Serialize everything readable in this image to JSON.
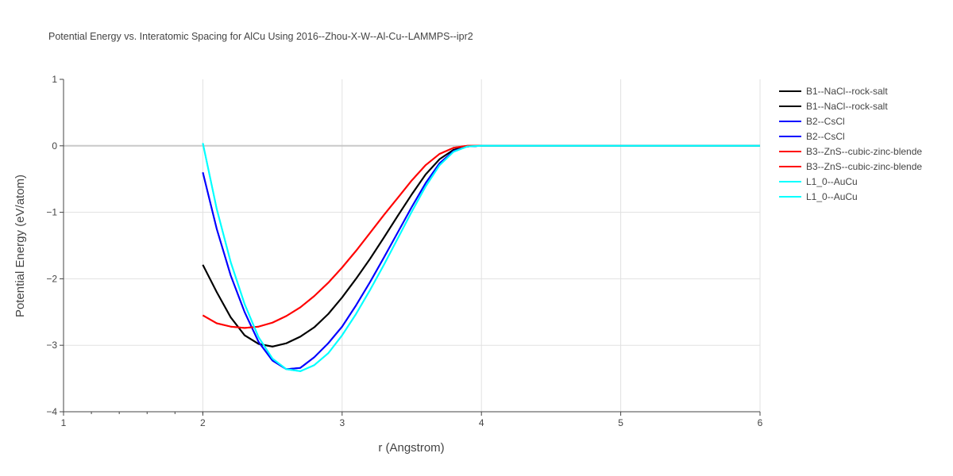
{
  "chart_data": {
    "type": "line",
    "title": "Potential Energy vs. Interatomic Spacing for AlCu Using 2016--Zhou-X-W--Al-Cu--LAMMPS--ipr2",
    "xlabel": "r (Angstrom)",
    "ylabel": "Potential Energy (eV/atom)",
    "xlim": [
      1,
      6
    ],
    "ylim": [
      -4,
      1
    ],
    "xticks": [
      "1",
      "2",
      "3",
      "4",
      "5",
      "6"
    ],
    "yticks": [
      "1",
      "0",
      "−1",
      "−2",
      "−3",
      "−4"
    ],
    "grid": true,
    "legend_position": "right",
    "x": [
      2.0,
      2.1,
      2.2,
      2.3,
      2.4,
      2.5,
      2.6,
      2.7,
      2.8,
      2.9,
      3.0,
      3.1,
      3.2,
      3.3,
      3.4,
      3.5,
      3.6,
      3.7,
      3.8,
      3.9,
      4.0,
      6.0
    ],
    "series": [
      {
        "name": "B1--NaCl--rock-salt",
        "color": "#000000",
        "values": [
          -1.79,
          -2.2,
          -2.58,
          -2.85,
          -2.98,
          -3.02,
          -2.97,
          -2.87,
          -2.73,
          -2.53,
          -2.28,
          -2.0,
          -1.7,
          -1.38,
          -1.05,
          -0.73,
          -0.43,
          -0.2,
          -0.06,
          -0.01,
          0,
          0
        ]
      },
      {
        "name": "B1--NaCl--rock-salt",
        "color": "#000000",
        "values": [
          -1.79,
          -2.2,
          -2.58,
          -2.85,
          -2.98,
          -3.02,
          -2.97,
          -2.87,
          -2.73,
          -2.53,
          -2.28,
          -2.0,
          -1.7,
          -1.38,
          -1.05,
          -0.73,
          -0.43,
          -0.2,
          -0.06,
          -0.01,
          0,
          0
        ]
      },
      {
        "name": "B2--CsCl",
        "color": "#0000ff",
        "values": [
          -0.4,
          -1.25,
          -1.95,
          -2.5,
          -2.95,
          -3.23,
          -3.36,
          -3.34,
          -3.18,
          -2.97,
          -2.72,
          -2.4,
          -2.05,
          -1.68,
          -1.3,
          -0.92,
          -0.56,
          -0.26,
          -0.08,
          -0.01,
          0,
          0
        ]
      },
      {
        "name": "B2--CsCl",
        "color": "#0000ff",
        "values": [
          -0.4,
          -1.25,
          -1.95,
          -2.5,
          -2.95,
          -3.23,
          -3.36,
          -3.34,
          -3.18,
          -2.97,
          -2.72,
          -2.4,
          -2.05,
          -1.68,
          -1.3,
          -0.92,
          -0.56,
          -0.26,
          -0.08,
          -0.01,
          0,
          0
        ]
      },
      {
        "name": "B3--ZnS--cubic-zinc-blende",
        "color": "#ff0000",
        "values": [
          -2.55,
          -2.67,
          -2.72,
          -2.74,
          -2.72,
          -2.66,
          -2.56,
          -2.43,
          -2.26,
          -2.06,
          -1.83,
          -1.58,
          -1.31,
          -1.04,
          -0.78,
          -0.52,
          -0.29,
          -0.12,
          -0.03,
          0,
          0,
          0
        ]
      },
      {
        "name": "B3--ZnS--cubic-zinc-blende",
        "color": "#ff0000",
        "values": [
          -2.55,
          -2.67,
          -2.72,
          -2.74,
          -2.72,
          -2.66,
          -2.56,
          -2.43,
          -2.26,
          -2.06,
          -1.83,
          -1.58,
          -1.31,
          -1.04,
          -0.78,
          -0.52,
          -0.29,
          -0.12,
          -0.03,
          0,
          0,
          0
        ]
      },
      {
        "name": "L1_0--AuCu",
        "color": "#00ffff",
        "values": [
          0.04,
          -0.95,
          -1.75,
          -2.38,
          -2.88,
          -3.2,
          -3.36,
          -3.39,
          -3.3,
          -3.12,
          -2.85,
          -2.53,
          -2.17,
          -1.79,
          -1.39,
          -0.99,
          -0.61,
          -0.29,
          -0.09,
          -0.01,
          0,
          0
        ]
      },
      {
        "name": "L1_0--AuCu",
        "color": "#00ffff",
        "values": [
          0.04,
          -0.95,
          -1.75,
          -2.38,
          -2.88,
          -3.2,
          -3.36,
          -3.39,
          -3.3,
          -3.12,
          -2.85,
          -2.53,
          -2.17,
          -1.79,
          -1.39,
          -0.99,
          -0.61,
          -0.29,
          -0.09,
          -0.01,
          0,
          0
        ]
      }
    ]
  }
}
